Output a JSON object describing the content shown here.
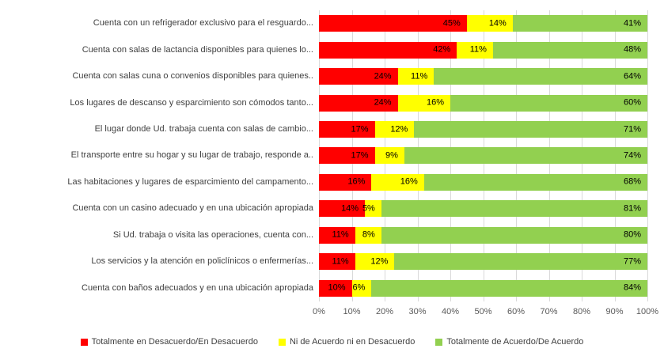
{
  "chart_data": {
    "type": "bar",
    "orientation": "horizontal-stacked",
    "title": "",
    "xlabel": "",
    "ylabel": "",
    "xlim": [
      0,
      100
    ],
    "grid": true,
    "legend_position": "bottom",
    "value_suffix": "%",
    "x_ticks": [
      "0%",
      "10%",
      "20%",
      "30%",
      "40%",
      "50%",
      "60%",
      "70%",
      "80%",
      "90%",
      "100%"
    ],
    "categories": [
      "Cuenta con un refrigerador exclusivo para el resguardo...",
      "Cuenta con salas de lactancia disponibles para quienes lo...",
      "Cuenta con salas cuna o convenios disponibles para quienes..",
      "Los lugares de descanso y esparcimiento son cómodos tanto...",
      "El lugar donde Ud. trabaja cuenta con salas de cambio...",
      "El transporte entre su hogar y su lugar de trabajo, responde a..",
      "Las habitaciones y lugares de esparcimiento del campamento...",
      "Cuenta con un casino adecuado y en una ubicación apropiada",
      "Si Ud. trabaja o visita las operaciones, cuenta con...",
      "Los servicios y la atención en policlínicos o enfermerías...",
      "Cuenta con baños adecuados y en una ubicación apropiada"
    ],
    "series": [
      {
        "name": "Totalmente en Desacuerdo/En Desacuerdo",
        "color": "#FF0000",
        "values": [
          45,
          42,
          24,
          24,
          17,
          17,
          16,
          14,
          11,
          11,
          10
        ]
      },
      {
        "name": "Ni de Acuerdo ni en Desacuerdo",
        "color": "#FFFF00",
        "values": [
          14,
          11,
          11,
          16,
          12,
          9,
          16,
          5,
          8,
          12,
          6
        ]
      },
      {
        "name": "Totalmente de Acuerdo/De Acuerdo",
        "color": "#92D050",
        "values": [
          41,
          48,
          64,
          60,
          71,
          74,
          68,
          81,
          80,
          77,
          84
        ]
      }
    ]
  },
  "colors": {
    "gridline": "#d9d9d9",
    "axis_text": "#595959",
    "category_text": "#404040",
    "data_label_text": "#000000",
    "background": "#ffffff"
  }
}
